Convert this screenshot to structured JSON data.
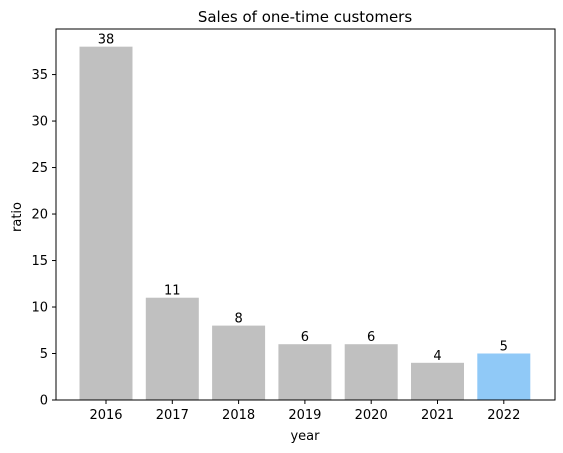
{
  "chart_data": {
    "type": "bar",
    "title": "Sales of one-time customers",
    "xlabel": "year",
    "ylabel": "ratio",
    "categories": [
      "2016",
      "2017",
      "2018",
      "2019",
      "2020",
      "2021",
      "2022"
    ],
    "values": [
      38,
      11,
      8,
      6,
      6,
      4,
      5
    ],
    "data_labels": [
      "38",
      "11",
      "8",
      "6",
      "6",
      "4",
      "5"
    ],
    "ylim": [
      0,
      39.9
    ],
    "yticks": [
      0,
      5,
      10,
      15,
      20,
      25,
      30,
      35
    ],
    "grid": false,
    "legend": "none",
    "colors": {
      "default_bar": "#c0c0c0",
      "highlight_bar": "#90c9f7",
      "axis": "#000000"
    },
    "highlight_index": 6
  }
}
